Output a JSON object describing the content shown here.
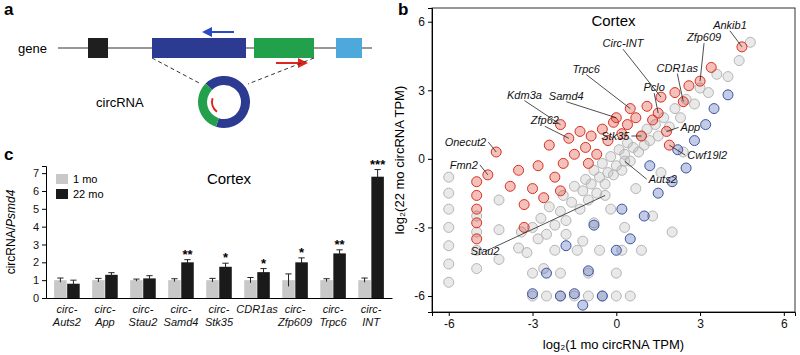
{
  "diagram": {
    "panel": "a",
    "gene_label": "gene",
    "circ_label": "circRNA"
  },
  "chart_data": [
    {
      "type": "scatter",
      "panel": "b",
      "title": "Cortex",
      "x_label": "log₂(1 mo circRNA TPM)",
      "y_label": "log₂(22 mo circRNA TPM)",
      "xlim": [
        -6.6,
        6.4
      ],
      "ylim": [
        -6.7,
        6.6
      ],
      "xticks": [
        -6,
        -3,
        0,
        3,
        6
      ],
      "yticks": [
        -6,
        -3,
        0,
        3,
        6
      ],
      "series": [
        {
          "color": "#b5b5b5",
          "marker": "circle",
          "x": [
            -6,
            -6,
            -6,
            -6,
            -6,
            -6,
            -6,
            -5,
            -5,
            -5,
            -5,
            -4.2,
            -4.2,
            -4.2,
            -3.5,
            -3.4,
            -3.2,
            -3,
            -2.8,
            -2.7,
            -2.5,
            -2.4,
            -2.2,
            -2,
            -1.9,
            -1.8,
            -1.6,
            -1.5,
            -1.3,
            -1.2,
            -1.1,
            -1,
            -0.9,
            -0.8,
            -0.7,
            -0.6,
            -0.5,
            -0.4,
            -0.3,
            -0.2,
            -0.1,
            0,
            0.1,
            0.2,
            0.3,
            0.4,
            0.5,
            0.6,
            0.8,
            0.9,
            1,
            1.1,
            1.2,
            1.4,
            1.5,
            1.7,
            1.9,
            2.1,
            2.3,
            2.5,
            2.8,
            3,
            3.3,
            3.6,
            4,
            4.4,
            4.8,
            -3,
            -2.5,
            -2,
            -1.5,
            -1,
            -0.5,
            0,
            0.5,
            -3,
            -2,
            -1,
            0,
            -2.2,
            -1.4,
            -0.6,
            0.2,
            0.9,
            -1.8,
            -0.8,
            0.3,
            1.3,
            2.0,
            -2.6,
            -1.2,
            -0.2,
            0.7,
            1.6,
            2.4,
            0.3,
            -0.4
          ],
          "values": [
            -0.8,
            -1.5,
            -2.2,
            -3,
            -3.8,
            -4.6,
            -5.4,
            -2.5,
            -3.2,
            -4,
            -4.8,
            -1.8,
            -3.1,
            -4.4,
            -3.9,
            -3.2,
            -4.1,
            -3.0,
            -3.5,
            -2.6,
            -3.3,
            -2.1,
            -2.9,
            -2.3,
            -1.6,
            -2.7,
            -1.9,
            -1.2,
            -2.2,
            -1.4,
            -0.9,
            -1.8,
            -1.1,
            -0.5,
            -1.5,
            -0.8,
            -0.2,
            -1.1,
            -0.6,
            0.1,
            -0.7,
            -0.3,
            0.4,
            -0.5,
            0.2,
            0.7,
            -0.1,
            0.5,
            0.3,
            1.0,
            0.6,
            1.3,
            0.8,
            1.5,
            1.0,
            1.8,
            1.4,
            2.2,
            1.8,
            2.6,
            2.4,
            3.1,
            2.9,
            3.7,
            3.6,
            4.3,
            5.1,
            -6,
            -6,
            -6,
            -6,
            -6,
            -6,
            -6,
            -6,
            -5,
            -5,
            -5,
            -5,
            -4,
            -4,
            -4,
            -4,
            -4,
            -3.3,
            -2.8,
            -3.0,
            -2.5,
            -3.2,
            -4.8,
            -3.6,
            -2.2,
            -1.3,
            -0.6,
            0.3,
            -0.1,
            -1.6
          ]
        },
        {
          "color": "#3b53a4",
          "marker": "circle",
          "x": [
            -2.5,
            -2,
            -1.5,
            -1,
            -0.5,
            0,
            0.5,
            1,
            1.5,
            2,
            2.5,
            2.8,
            3.2,
            3.5,
            4.0,
            -1.8,
            -0.8,
            0.2,
            1.2,
            2.2,
            -3,
            -1.2
          ],
          "values": [
            -5,
            -6,
            -5.9,
            -4.9,
            -6,
            -4,
            -3.5,
            -2.5,
            -1.5,
            -1,
            -0.4,
            0.8,
            1.5,
            2.2,
            2.8,
            -3.8,
            -2.9,
            -2.2,
            -0.3,
            0.4,
            -5.9,
            -6.4
          ]
        },
        {
          "color": "#d7301f",
          "marker": "circle",
          "x": [
            -5,
            -5,
            -5,
            -5,
            -5,
            -4.3,
            -4.6,
            -3.8,
            -3.5,
            -3.3,
            -3,
            -2.8,
            -2.6,
            -2.4,
            -2.0,
            -2.2,
            -1.9,
            -1.7,
            -1.5,
            -1.3,
            -1.1,
            -0.9,
            -0.7,
            -0.5,
            -0.3,
            -0.1,
            0,
            0.2,
            0.5,
            0.4,
            0.7,
            0.9,
            1.1,
            1.3,
            1.5,
            1.6,
            1.8,
            1.9,
            2.1,
            2.4,
            2.6,
            3.0,
            3.4,
            4.5,
            -3.3,
            -2.0,
            -1.0
          ],
          "values": [
            -3.5,
            -2.8,
            -2.2,
            -1.6,
            -1.0,
            0.3,
            -0.7,
            -1.2,
            -0.5,
            -2,
            -1.3,
            -0.3,
            -1.7,
            0.6,
            1.5,
            -0.8,
            -0.2,
            0.9,
            0.2,
            1.2,
            0.5,
            1.0,
            0.2,
            1.3,
            0.8,
            1.6,
            1.8,
            1.1,
            2.2,
            1.5,
            1.8,
            1.0,
            2.3,
            1.7,
            2.0,
            2.7,
            1.2,
            0.6,
            2.9,
            2.5,
            3.2,
            3.4,
            4.0,
            4.9,
            -3.0,
            -1.4,
            -0.2
          ]
        }
      ],
      "annotations": [
        {
          "text": "Ankib1",
          "x": 4.5,
          "y": 4.9
        },
        {
          "text": "Zfp609",
          "x": 3.0,
          "y": 3.4
        },
        {
          "text": "Circ-INT",
          "x": 1.6,
          "y": 2.7
        },
        {
          "text": "CDR1as",
          "x": 2.4,
          "y": 2.5
        },
        {
          "text": "Trpc6",
          "x": 0.5,
          "y": 2.2
        },
        {
          "text": "Pclo",
          "x": 1.5,
          "y": 2.0
        },
        {
          "text": "Samd4",
          "x": 0,
          "y": 1.8
        },
        {
          "text": "Stk35",
          "x": 0.9,
          "y": 1.0
        },
        {
          "text": "App",
          "x": 1.8,
          "y": 1.2
        },
        {
          "text": "Cwf19l2",
          "x": 1.9,
          "y": 0.6
        },
        {
          "text": "Auts2",
          "x": 0.3,
          "y": -0.1
        },
        {
          "text": "Kdm3a",
          "x": -2.0,
          "y": 1.5
        },
        {
          "text": "Zfp62",
          "x": -1.7,
          "y": 0.9
        },
        {
          "text": "Onecut2",
          "x": -4.3,
          "y": 0.3
        },
        {
          "text": "Fmn2",
          "x": -4.6,
          "y": -0.7
        },
        {
          "text": "Stau2",
          "x": -0.4,
          "y": -1.6
        }
      ]
    },
    {
      "type": "bar",
      "panel": "c",
      "title": "Cortex",
      "y_label": "circRNA/Psmd4",
      "categories": [
        "circ-Auts2",
        "circ-App",
        "circ-Stau2",
        "circ-Samd4",
        "circ-Stk35",
        "CDR1as",
        "circ-Zfp609",
        "circ-Trpc6",
        "circ-INT"
      ],
      "series": [
        {
          "name": "1 mo",
          "color": "#c8c8c8",
          "values": [
            1.0,
            1.0,
            1.0,
            1.0,
            1.0,
            1.0,
            1.0,
            1.0,
            1.0
          ],
          "errors": [
            0.12,
            0.1,
            0.06,
            0.08,
            0.1,
            0.15,
            0.35,
            0.08,
            0.12
          ]
        },
        {
          "name": "22 mo",
          "color": "#1a1a1a",
          "values": [
            0.8,
            1.3,
            1.1,
            2.0,
            1.75,
            1.45,
            2.0,
            2.5,
            6.8
          ],
          "errors": [
            0.2,
            0.12,
            0.15,
            0.15,
            0.2,
            0.2,
            0.25,
            0.2,
            0.4
          ]
        }
      ],
      "ylim": [
        0,
        7.4
      ],
      "yticks": [
        0,
        1,
        2,
        3,
        4,
        5,
        6,
        7
      ],
      "legend": "top-left",
      "significance": [
        null,
        null,
        null,
        "**",
        "*",
        "*",
        "*",
        "**",
        "***"
      ]
    }
  ]
}
